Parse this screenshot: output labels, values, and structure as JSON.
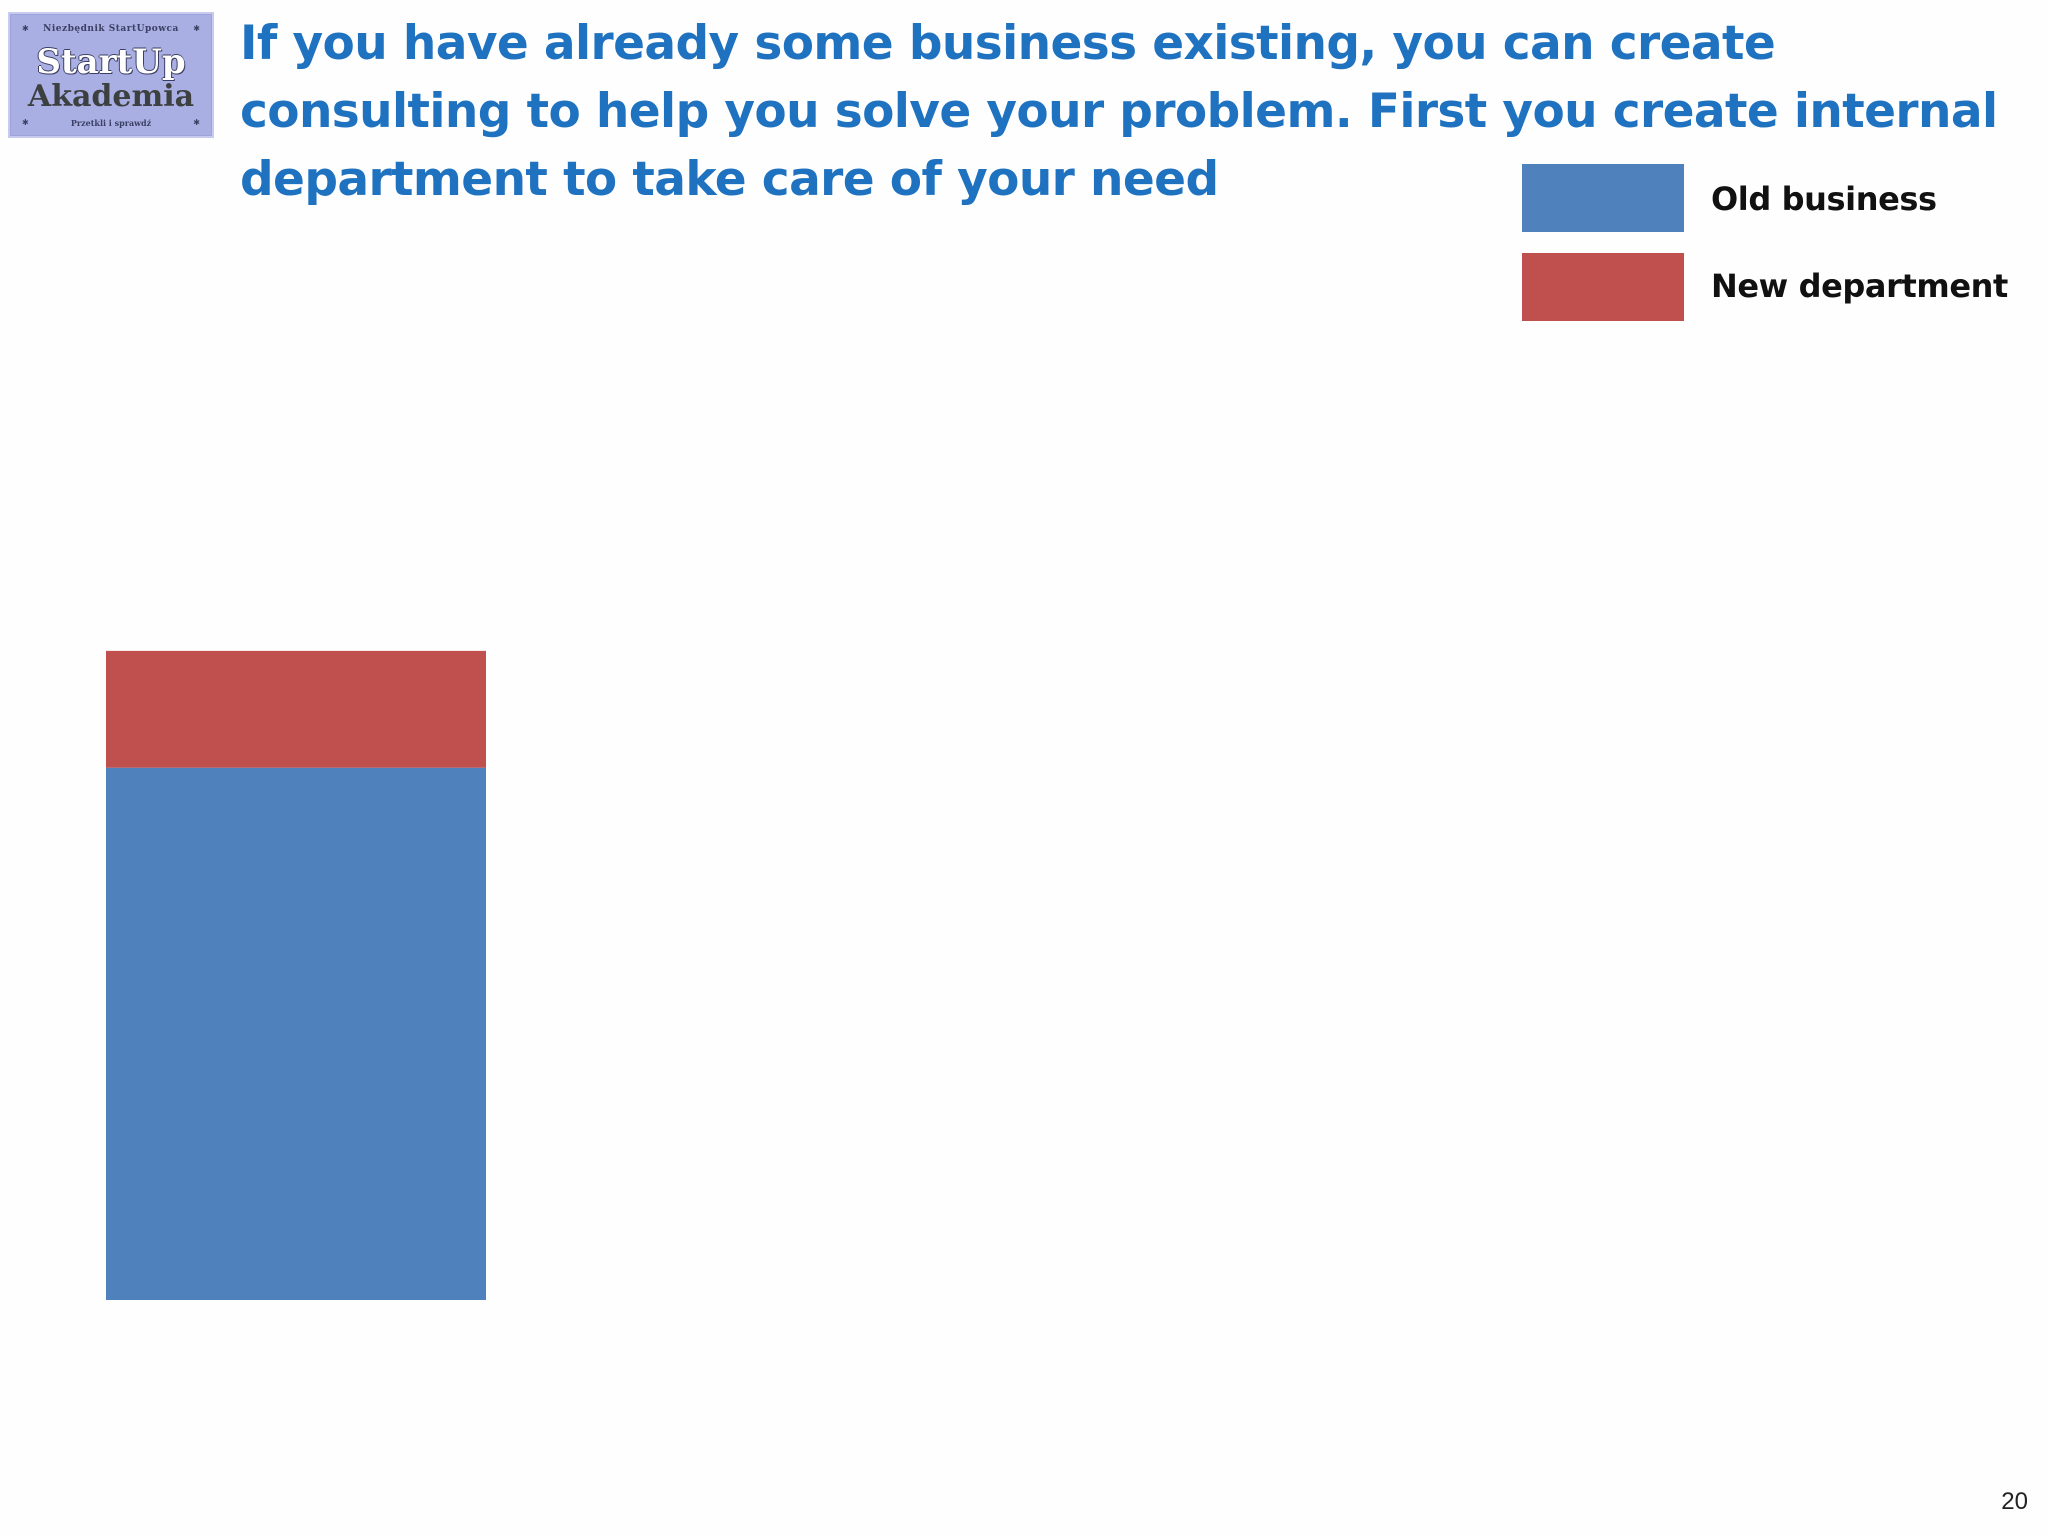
{
  "logo": {
    "top_text": "Niezbędnik StartUpowca",
    "line1": "StartUp",
    "line2": "Akademia",
    "bottom_text": "Przetkli i sprawdź"
  },
  "slide": {
    "title": "If you have already some business existing, you can create consulting to help you solve your problem. First you create internal department to take care of your need",
    "page_number": "20"
  },
  "chart_data": {
    "type": "bar",
    "stacked": true,
    "categories": [
      ""
    ],
    "series": [
      {
        "name": "Old business",
        "values": [
          0.82
        ],
        "color": "#4f81bd"
      },
      {
        "name": "New department",
        "values": [
          0.18
        ],
        "color": "#c0504d"
      }
    ],
    "legend_placement": "top-right",
    "grid": false,
    "ylim": [
      0,
      1.71
    ]
  }
}
